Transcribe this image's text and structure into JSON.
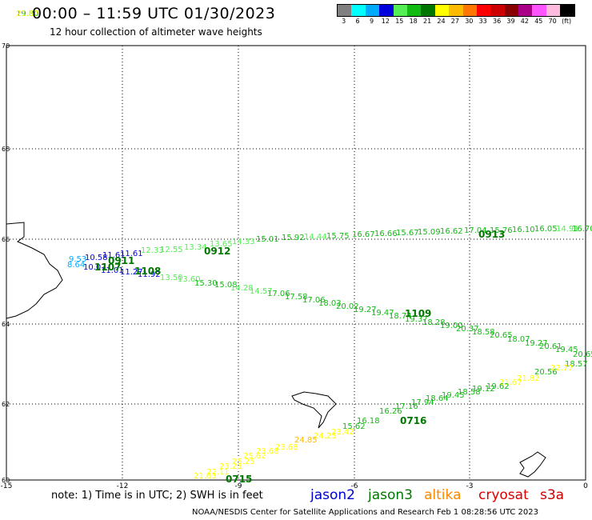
{
  "header": {
    "title": "00:00 – 11:59 UTC 01/30/2023",
    "subtitle": "12 hour collection of altimeter wave heights"
  },
  "colorbar": {
    "colors": [
      "#808080",
      "#00ffff",
      "#00aaff",
      "#0000dd",
      "#55ee55",
      "#11bb11",
      "#007700",
      "#ffff00",
      "#ffbb00",
      "#ff7700",
      "#ff0000",
      "#cc0000",
      "#880000",
      "#aa0088",
      "#ff55ff",
      "#ffbbdd",
      "#000000"
    ],
    "labels": [
      "3",
      "6",
      "9",
      "12",
      "15",
      "18",
      "21",
      "24",
      "27",
      "30",
      "33",
      "36",
      "39",
      "42",
      "45",
      "70",
      "(ft)"
    ]
  },
  "map": {
    "lat_ticks": [
      "70",
      "68",
      "66",
      "64",
      "62",
      "60"
    ],
    "lon_ticks": [
      "-15",
      "-12",
      "-9",
      "-6",
      "-3",
      "0"
    ],
    "track_labels": [
      {
        "text": "0913",
        "color": "#007700"
      },
      {
        "text": "0912",
        "color": "#007700"
      },
      {
        "text": "0911",
        "color": "#007700"
      },
      {
        "text": "1107",
        "color": "#007700"
      },
      {
        "text": "1108",
        "color": "#007700"
      },
      {
        "text": "1109",
        "color": "#007700"
      },
      {
        "text": "0716",
        "color": "#007700"
      },
      {
        "text": "0715",
        "color": "#007700"
      }
    ],
    "values": [
      {
        "text": "9.53",
        "color": "#00aaff"
      },
      {
        "text": "10.58",
        "color": "#0000dd"
      },
      {
        "text": "11.61",
        "color": "#0000dd"
      },
      {
        "text": "11.61",
        "color": "#0000dd"
      },
      {
        "text": "12.33",
        "color": "#55ee55"
      },
      {
        "text": "12.55",
        "color": "#55ee55"
      },
      {
        "text": "13.34",
        "color": "#55ee55"
      },
      {
        "text": "13.65",
        "color": "#55ee55"
      },
      {
        "text": "14.33",
        "color": "#55ee55"
      },
      {
        "text": "15.01",
        "color": "#11bb11"
      },
      {
        "text": "15.92",
        "color": "#11bb11"
      },
      {
        "text": "14.44",
        "color": "#55ee55"
      },
      {
        "text": "15.75",
        "color": "#11bb11"
      },
      {
        "text": "16.67",
        "color": "#11bb11"
      },
      {
        "text": "16.66",
        "color": "#11bb11"
      },
      {
        "text": "15.67",
        "color": "#11bb11"
      },
      {
        "text": "15.09",
        "color": "#11bb11"
      },
      {
        "text": "16.62",
        "color": "#11bb11"
      },
      {
        "text": "17.04",
        "color": "#11bb11"
      },
      {
        "text": "15.76",
        "color": "#11bb11"
      },
      {
        "text": "16.10",
        "color": "#11bb11"
      },
      {
        "text": "16.05",
        "color": "#11bb11"
      },
      {
        "text": "14.91",
        "color": "#55ee55"
      },
      {
        "text": "16.70",
        "color": "#11bb11"
      },
      {
        "text": "8.64",
        "color": "#00aaff"
      },
      {
        "text": "10.07",
        "color": "#0000dd"
      },
      {
        "text": "11.01",
        "color": "#0000dd"
      },
      {
        "text": "11.27",
        "color": "#0000dd"
      },
      {
        "text": "11.92",
        "color": "#0000dd"
      },
      {
        "text": "13.50",
        "color": "#55ee55"
      },
      {
        "text": "13.60",
        "color": "#55ee55"
      },
      {
        "text": "15.30",
        "color": "#11bb11"
      },
      {
        "text": "15.08",
        "color": "#11bb11"
      },
      {
        "text": "14.28",
        "color": "#55ee55"
      },
      {
        "text": "14.57",
        "color": "#55ee55"
      },
      {
        "text": "17.06",
        "color": "#11bb11"
      },
      {
        "text": "17.58",
        "color": "#11bb11"
      },
      {
        "text": "17.06",
        "color": "#11bb11"
      },
      {
        "text": "18.03",
        "color": "#11bb11"
      },
      {
        "text": "20.02",
        "color": "#11bb11"
      },
      {
        "text": "19.27",
        "color": "#11bb11"
      },
      {
        "text": "19.47",
        "color": "#11bb11"
      },
      {
        "text": "18.74",
        "color": "#11bb11"
      },
      {
        "text": "19.37",
        "color": "#11bb11"
      },
      {
        "text": "18.28",
        "color": "#11bb11"
      },
      {
        "text": "19.00",
        "color": "#11bb11"
      },
      {
        "text": "20.37",
        "color": "#11bb11"
      },
      {
        "text": "18.58",
        "color": "#11bb11"
      },
      {
        "text": "20.65",
        "color": "#11bb11"
      },
      {
        "text": "18.07",
        "color": "#11bb11"
      },
      {
        "text": "19.27",
        "color": "#11bb11"
      },
      {
        "text": "20.61",
        "color": "#11bb11"
      },
      {
        "text": "19.45",
        "color": "#11bb11"
      },
      {
        "text": "20.65",
        "color": "#11bb11"
      },
      {
        "text": "18.57",
        "color": "#11bb11"
      },
      {
        "text": "20.56",
        "color": "#11bb11"
      },
      {
        "text": "22.77",
        "color": "#ffff00"
      },
      {
        "text": "21.82",
        "color": "#ffff00"
      },
      {
        "text": "21.67",
        "color": "#ffff00"
      },
      {
        "text": "19.62",
        "color": "#11bb11"
      },
      {
        "text": "19.12",
        "color": "#11bb11"
      },
      {
        "text": "18.58",
        "color": "#11bb11"
      },
      {
        "text": "19.45",
        "color": "#11bb11"
      },
      {
        "text": "18.64",
        "color": "#11bb11"
      },
      {
        "text": "17.94",
        "color": "#11bb11"
      },
      {
        "text": "17.16",
        "color": "#11bb11"
      },
      {
        "text": "16.26",
        "color": "#11bb11"
      },
      {
        "text": "16.18",
        "color": "#11bb11"
      },
      {
        "text": "15.62",
        "color": "#11bb11"
      },
      {
        "text": "23.42",
        "color": "#ffff00"
      },
      {
        "text": "24.25",
        "color": "#ffff00"
      },
      {
        "text": "24.85",
        "color": "#ffbb00"
      },
      {
        "text": "23.68",
        "color": "#ffff00"
      },
      {
        "text": "23.68",
        "color": "#ffff00"
      },
      {
        "text": "25.62",
        "color": "#ffff00"
      },
      {
        "text": "25.25",
        "color": "#ffff00"
      },
      {
        "text": "23.23",
        "color": "#ffff00"
      },
      {
        "text": "22.11",
        "color": "#ffff00"
      },
      {
        "text": "21.63",
        "color": "#ffff00"
      },
      {
        "text": "19.80",
        "color": "#11bb11"
      },
      {
        "text": "21.67",
        "color": "#ffff00"
      }
    ]
  },
  "footer": {
    "note": "note: 1) Time is in UTC; 2) SWH is in feet",
    "legend": [
      {
        "name": "jason2",
        "color": "#0000cc"
      },
      {
        "name": "jason3",
        "color": "#007700"
      },
      {
        "name": "altika",
        "color": "#ff8800"
      },
      {
        "name": "cryosat",
        "color": "#dd0000"
      },
      {
        "name": "s3a",
        "color": "#cc0000"
      }
    ],
    "credit": "NOAA/NESDIS Center for Satellite Applications and Research   Feb  1 08:28:56 UTC 2023"
  }
}
